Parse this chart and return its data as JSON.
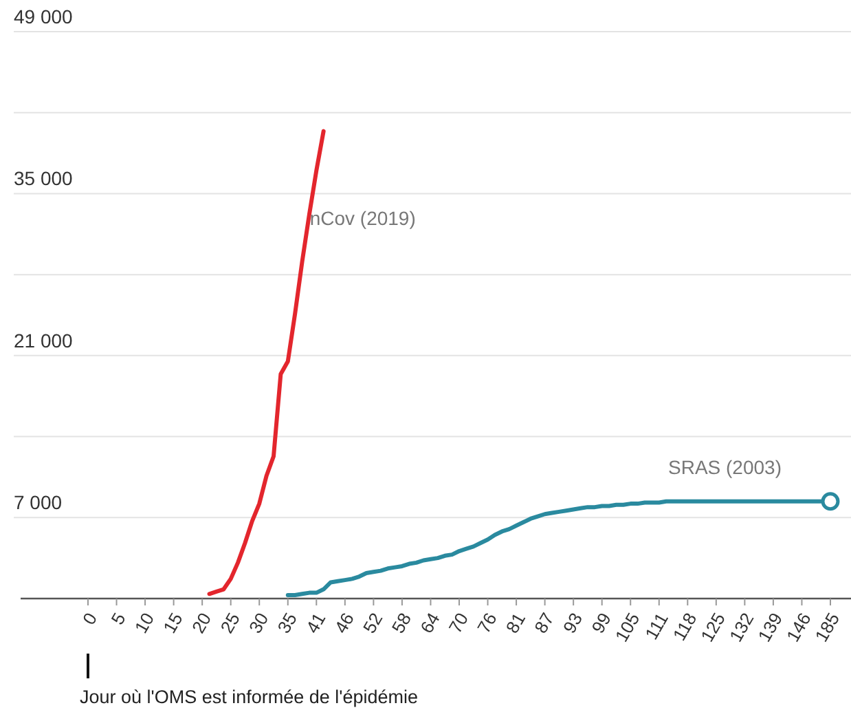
{
  "chart_data": {
    "type": "line",
    "categories": [
      "0",
      null,
      null,
      null,
      "5",
      null,
      null,
      null,
      "10",
      null,
      null,
      null,
      "15",
      null,
      null,
      null,
      "20",
      null,
      null,
      null,
      "25",
      null,
      null,
      null,
      "30",
      null,
      null,
      null,
      "35",
      null,
      null,
      null,
      "41",
      null,
      null,
      null,
      "46",
      null,
      null,
      null,
      "52",
      null,
      null,
      null,
      "58",
      null,
      null,
      null,
      "64",
      null,
      null,
      null,
      "70",
      null,
      null,
      null,
      "76",
      null,
      null,
      null,
      "81",
      null,
      null,
      null,
      "87",
      null,
      null,
      null,
      "93",
      null,
      null,
      null,
      "99",
      null,
      null,
      null,
      "105",
      null,
      null,
      null,
      "111",
      null,
      null,
      null,
      "118",
      null,
      null,
      null,
      "125",
      null,
      null,
      null,
      "132",
      null,
      null,
      null,
      "139",
      null,
      null,
      null,
      "146",
      null,
      null,
      null,
      "185"
    ],
    "series": [
      {
        "name": "nCov (2019)",
        "color": "#e3262d",
        "values": [
          null,
          null,
          null,
          null,
          null,
          null,
          null,
          null,
          null,
          null,
          null,
          null,
          null,
          null,
          null,
          null,
          null,
          400,
          600,
          800,
          1700,
          3100,
          4800,
          6700,
          8200,
          10600,
          12300,
          19400,
          20500,
          24600,
          29100,
          33200,
          37000,
          40400,
          null,
          null,
          null,
          null,
          null,
          null,
          null,
          null,
          null,
          null,
          null,
          null,
          null,
          null,
          null,
          null,
          null,
          null,
          null,
          null,
          null,
          null,
          null,
          null,
          null,
          null,
          null,
          null,
          null,
          null,
          null,
          null,
          null,
          null,
          null,
          null,
          null,
          null,
          null,
          null,
          null,
          null,
          null,
          null,
          null,
          null,
          null,
          null,
          null,
          null,
          null,
          null,
          null,
          null,
          null,
          null,
          null,
          null,
          null,
          null,
          null,
          null,
          null,
          null,
          null,
          null,
          null,
          null,
          null,
          null,
          null
        ]
      },
      {
        "name": "SRAS (2003)",
        "color": "#2a8a9f",
        "values": [
          null,
          null,
          null,
          null,
          null,
          null,
          null,
          null,
          null,
          null,
          null,
          null,
          null,
          null,
          null,
          null,
          null,
          null,
          null,
          null,
          null,
          null,
          null,
          null,
          null,
          null,
          null,
          null,
          300,
          300,
          400,
          500,
          500,
          800,
          1400,
          1500,
          1600,
          1700,
          1900,
          2200,
          2300,
          2400,
          2600,
          2700,
          2800,
          3000,
          3100,
          3300,
          3400,
          3500,
          3700,
          3800,
          4100,
          4300,
          4500,
          4800,
          5100,
          5500,
          5800,
          6000,
          6300,
          6600,
          6900,
          7100,
          7300,
          7400,
          7500,
          7600,
          7700,
          7800,
          7900,
          7900,
          8000,
          8000,
          8100,
          8100,
          8200,
          8200,
          8300,
          8300,
          8300,
          8400,
          8400,
          8400,
          8400,
          8400,
          8400,
          8400,
          8400,
          8400,
          8400,
          8400,
          8400,
          8400,
          8400,
          8400,
          8400,
          8400,
          8400,
          8400,
          8400,
          8400,
          8400,
          8400,
          8400
        ]
      }
    ],
    "ylim": [
      0,
      49000
    ],
    "yticks": [
      {
        "value": 0,
        "label": null
      },
      {
        "value": 7000,
        "label": "7 000"
      },
      {
        "value": 14000,
        "label": null
      },
      {
        "value": 21000,
        "label": "21 000"
      },
      {
        "value": 28000,
        "label": null
      },
      {
        "value": 35000,
        "label": "35 000"
      },
      {
        "value": 42000,
        "label": null
      },
      {
        "value": 49000,
        "label": "49 000"
      }
    ],
    "grid": "y",
    "marker": "none",
    "line_style": "solid",
    "annotations": [
      "Jour où l'OMS est informée de l'épidémie"
    ]
  }
}
